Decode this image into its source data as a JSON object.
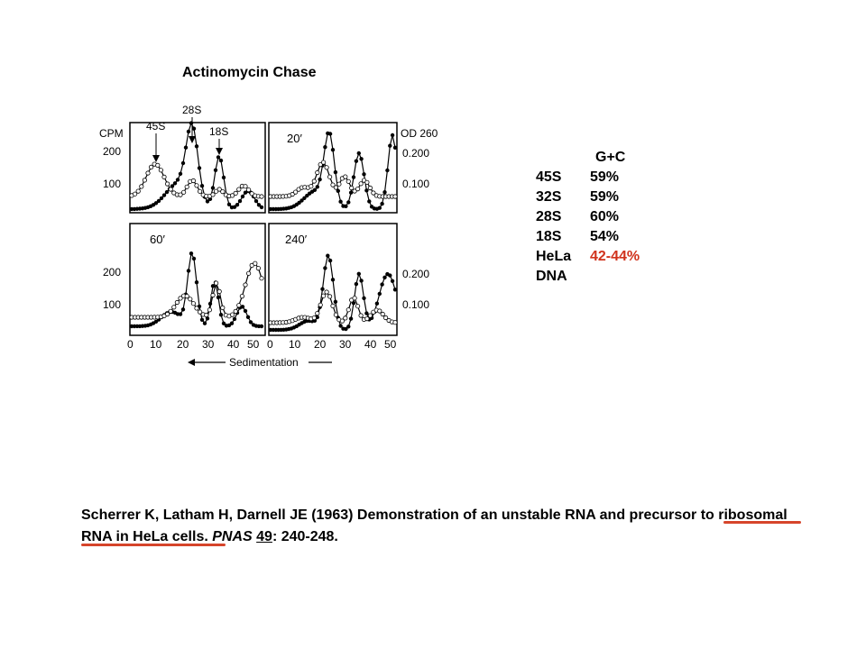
{
  "heading": "Actinomycin Chase",
  "figure": {
    "left_axis_label": "CPM",
    "right_axis_label": "OD 260",
    "markers": [
      "45S",
      "28S",
      "18S"
    ],
    "left_ticks_top": [
      "200",
      "100"
    ],
    "right_ticks_top": [
      "0.200",
      "0.100"
    ],
    "left_ticks_bottom": [
      "200",
      "100"
    ],
    "right_ticks_bottom": [
      "0.200",
      "0.100"
    ],
    "panel_labels": [
      "20′",
      "60′",
      "240′"
    ],
    "x_ticks": [
      "0",
      "10",
      "20",
      "30",
      "40",
      "50"
    ],
    "x_axis_label": "Sedimentation"
  },
  "gc_table": {
    "header": "G+C",
    "rows": [
      {
        "name": "45S",
        "value": "59%",
        "highlight": false
      },
      {
        "name": "32S",
        "value": "59%",
        "highlight": false
      },
      {
        "name": "28S",
        "value": "60%",
        "highlight": false
      },
      {
        "name": "18S",
        "value": "54%",
        "highlight": false
      },
      {
        "name": "HeLa",
        "value": "42-44%",
        "highlight": true
      },
      {
        "name": "DNA",
        "value": "",
        "highlight": false
      }
    ],
    "highlight_color": "#d0321c"
  },
  "citation": {
    "part1": "Scherrer K, Latham H, Darnell JE (1963) Demonstration of an unstable RNA and precursor to ribosomal RNA in HeLa cells.  ",
    "journal": "PNAS",
    "space": " ",
    "volume": "49",
    "pages": ": 240-248.",
    "mark_color": "#d6452b"
  }
}
